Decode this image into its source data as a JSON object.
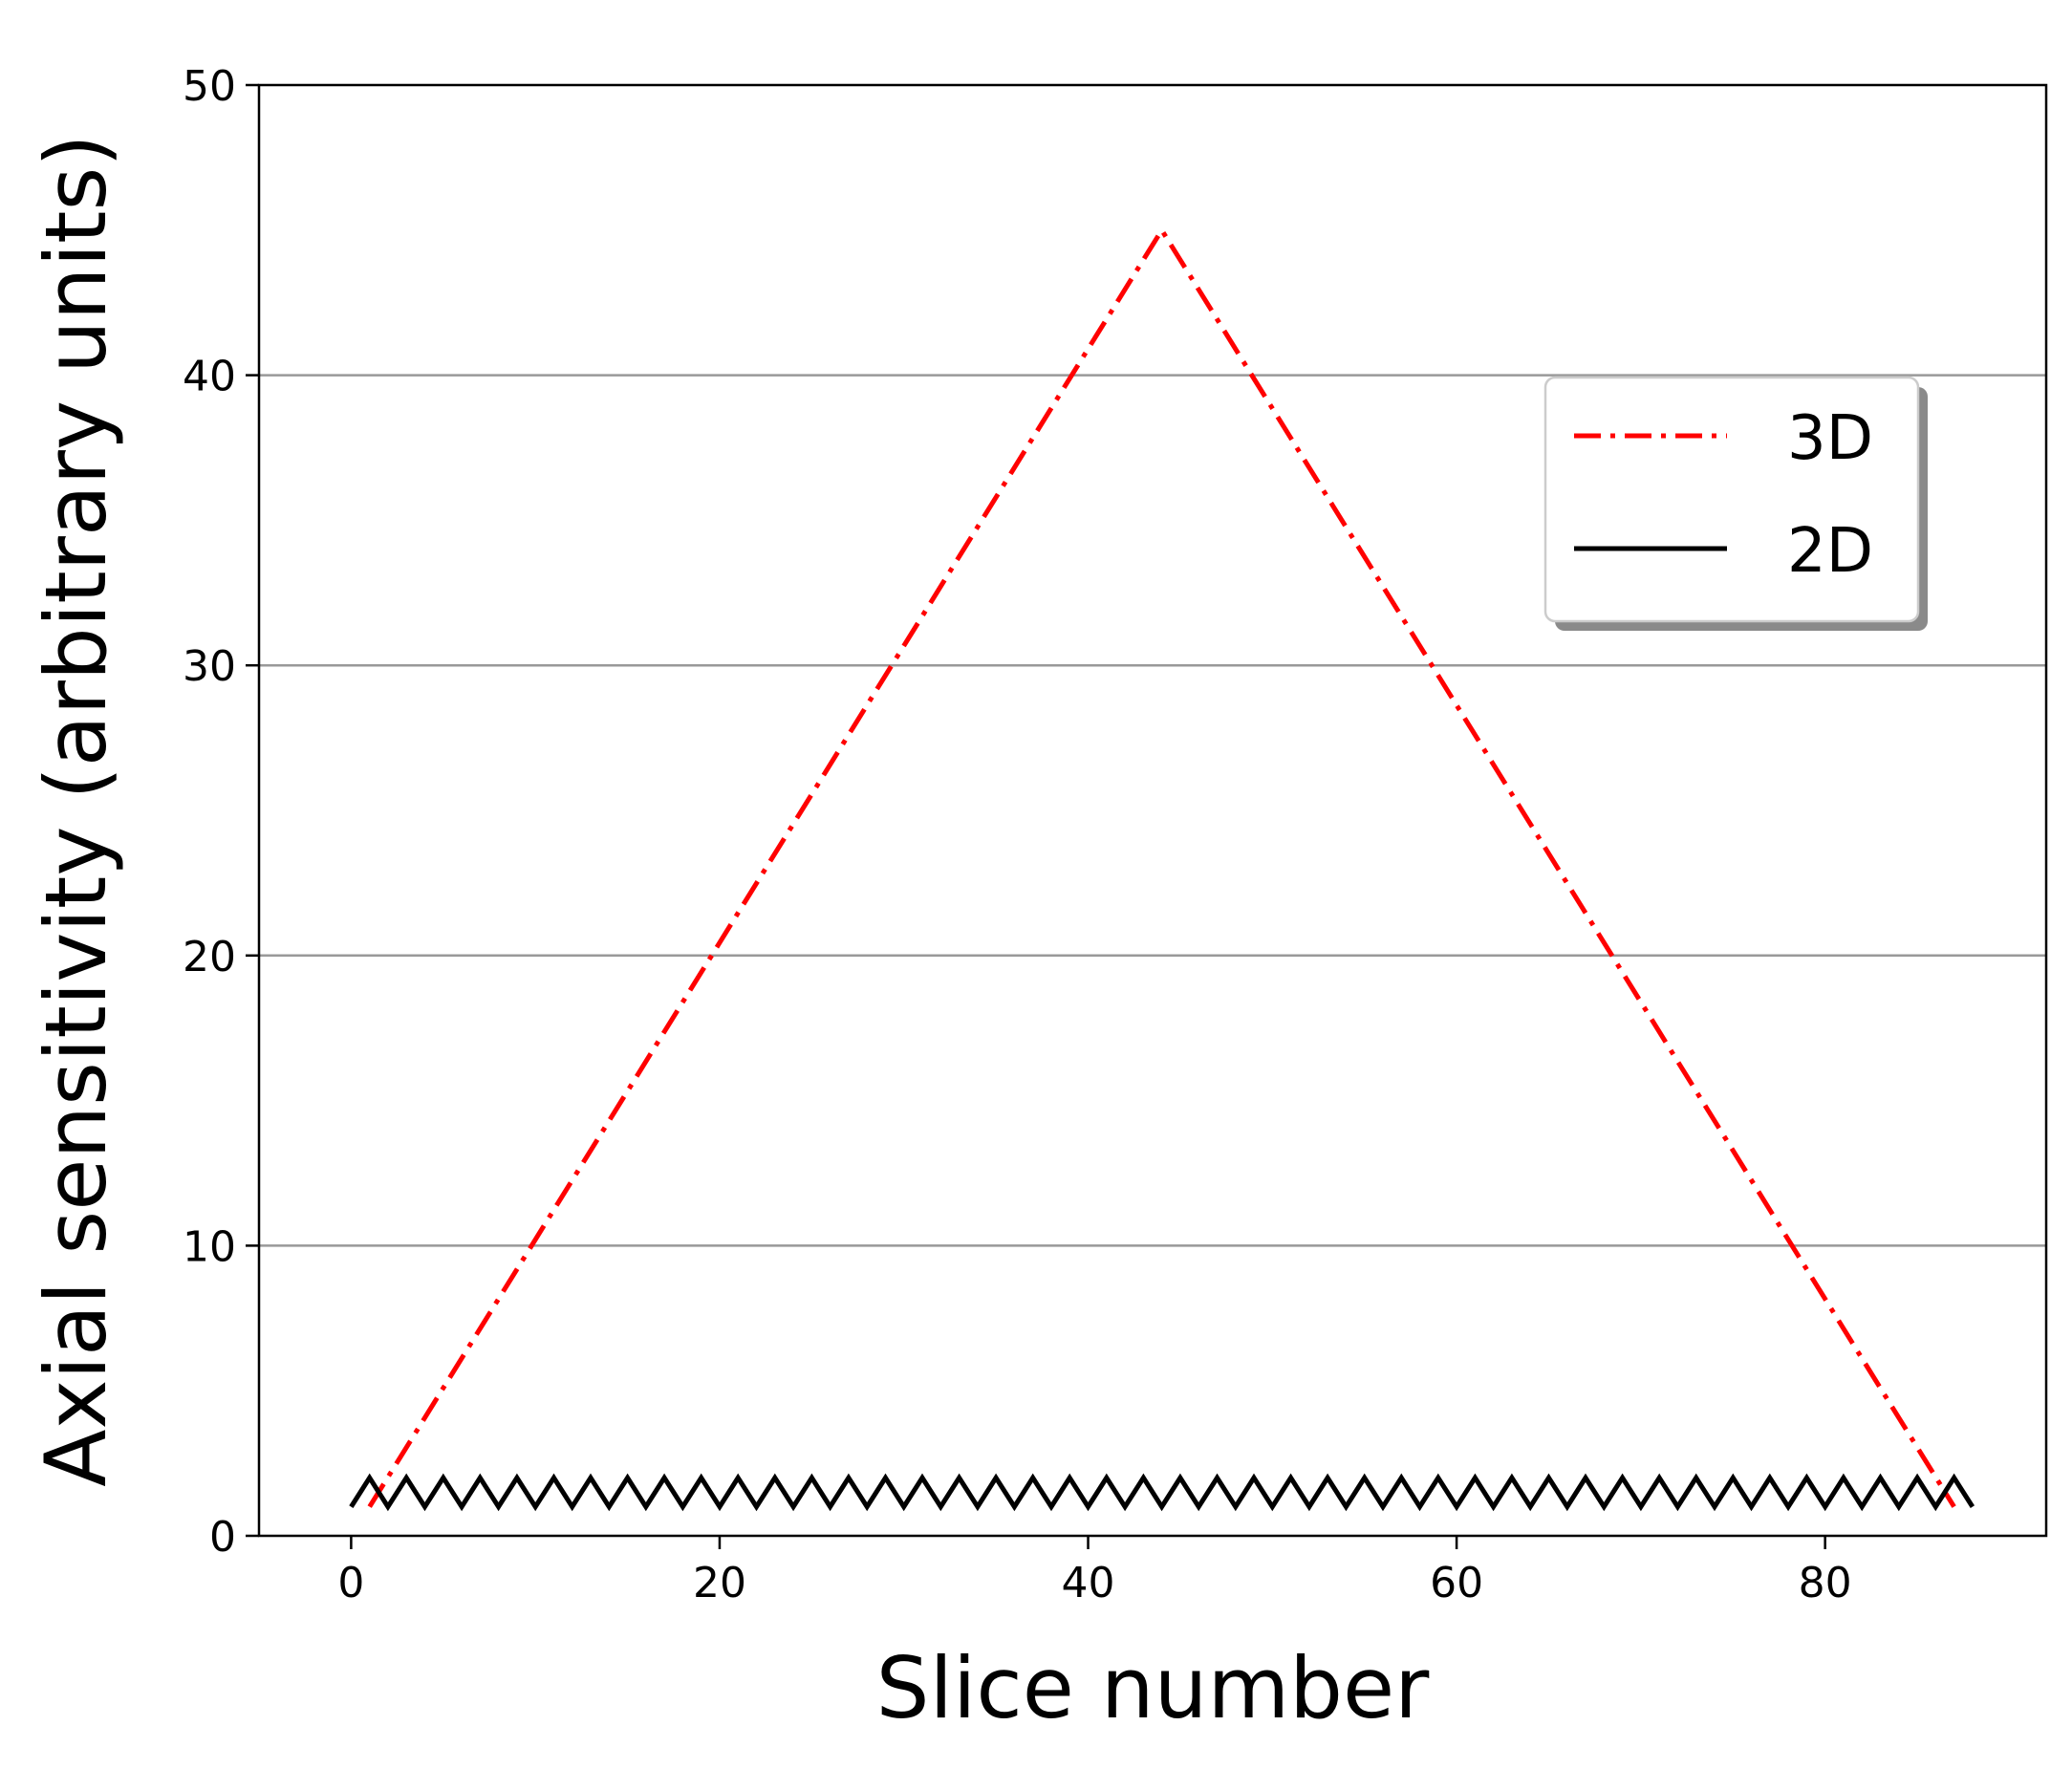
{
  "chart_data": {
    "type": "line",
    "title": "",
    "xlabel": "Slice number",
    "ylabel": "Axial sensitivity (arbitrary units)",
    "xlim": [
      -5,
      92
    ],
    "ylim": [
      0,
      50
    ],
    "xticks": [
      0,
      20,
      40,
      60,
      80
    ],
    "yticks": [
      0,
      10,
      20,
      30,
      40,
      50
    ],
    "x_tick_labels": [
      "0",
      "20",
      "40",
      "60",
      "80"
    ],
    "y_tick_labels": [
      "0",
      "10",
      "20",
      "30",
      "40",
      "50"
    ],
    "grid": "horizontal",
    "legend_position": "upper right",
    "series": [
      {
        "name": "3D",
        "color": "#ff0000",
        "linestyle": "dashdot",
        "x": [
          1,
          44,
          87
        ],
        "y": [
          1,
          45,
          1
        ]
      },
      {
        "name": "2D",
        "color": "#000000",
        "linestyle": "solid",
        "x": [
          0,
          1,
          2,
          3,
          4,
          5,
          6,
          7,
          8,
          9,
          10,
          11,
          12,
          13,
          14,
          15,
          16,
          17,
          18,
          19,
          20,
          21,
          22,
          23,
          24,
          25,
          26,
          27,
          28,
          29,
          30,
          31,
          32,
          33,
          34,
          35,
          36,
          37,
          38,
          39,
          40,
          41,
          42,
          43,
          44,
          45,
          46,
          47,
          48,
          49,
          50,
          51,
          52,
          53,
          54,
          55,
          56,
          57,
          58,
          59,
          60,
          61,
          62,
          63,
          64,
          65,
          66,
          67,
          68,
          69,
          70,
          71,
          72,
          73,
          74,
          75,
          76,
          77,
          78,
          79,
          80,
          81,
          82,
          83,
          84,
          85,
          86,
          87,
          88
        ],
        "y": [
          1,
          2,
          1,
          2,
          1,
          2,
          1,
          2,
          1,
          2,
          1,
          2,
          1,
          2,
          1,
          2,
          1,
          2,
          1,
          2,
          1,
          2,
          1,
          2,
          1,
          2,
          1,
          2,
          1,
          2,
          1,
          2,
          1,
          2,
          1,
          2,
          1,
          2,
          1,
          2,
          1,
          2,
          1,
          2,
          1,
          2,
          1,
          2,
          1,
          2,
          1,
          2,
          1,
          2,
          1,
          2,
          1,
          2,
          1,
          2,
          1,
          2,
          1,
          2,
          1,
          2,
          1,
          2,
          1,
          2,
          1,
          2,
          1,
          2,
          1,
          2,
          1,
          2,
          1,
          2,
          1,
          2,
          1,
          2,
          1,
          2,
          1,
          2,
          1
        ]
      }
    ]
  }
}
